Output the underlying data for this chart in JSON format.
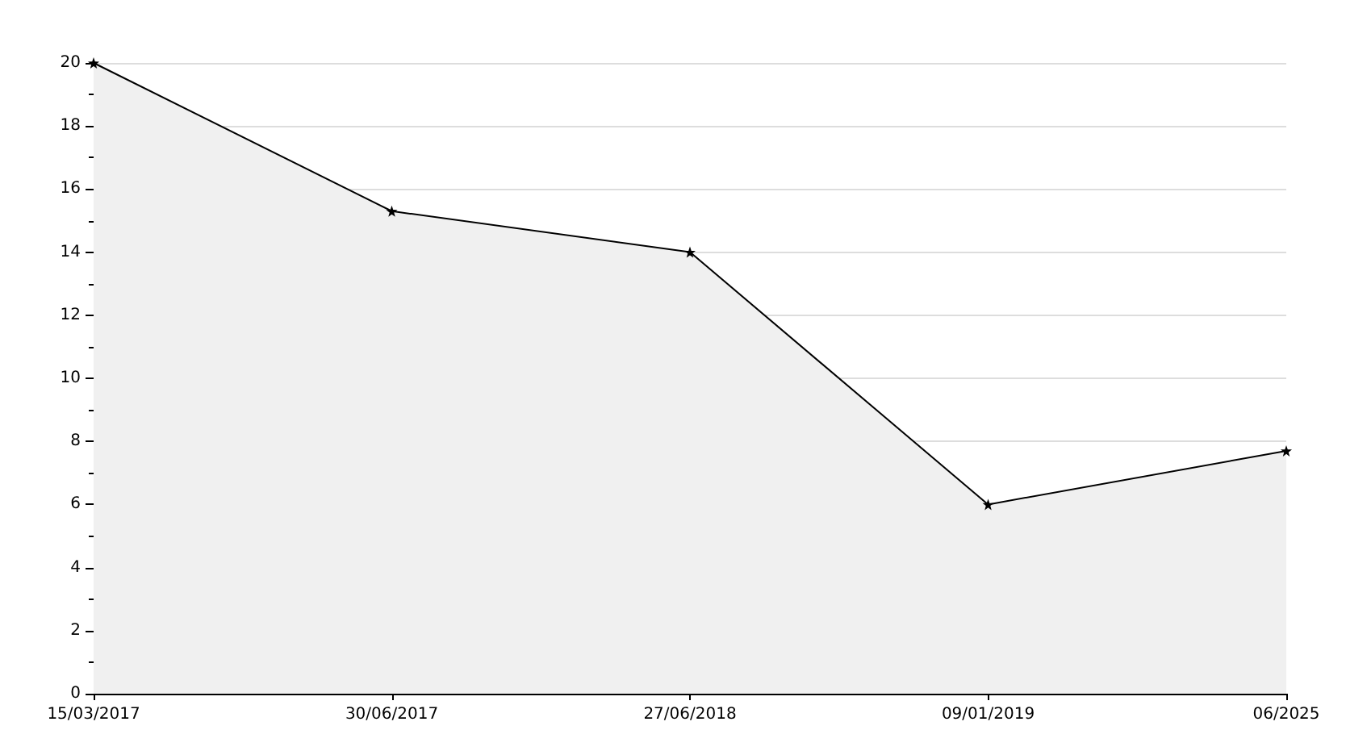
{
  "chart_data": {
    "type": "area",
    "categories": [
      "15/03/2017",
      "30/06/2017",
      "27/06/2018",
      "09/01/2019",
      "06/2025"
    ],
    "series": [
      {
        "color": "#000000",
        "values": [
          20,
          15.3,
          14,
          6,
          7.7
        ]
      }
    ],
    "ylim": [
      0,
      20
    ],
    "yticks": [
      0,
      2,
      4,
      6,
      8,
      10,
      12,
      14,
      16,
      18,
      20
    ],
    "grid": "y",
    "marker": "star",
    "line_style": "solid"
  }
}
